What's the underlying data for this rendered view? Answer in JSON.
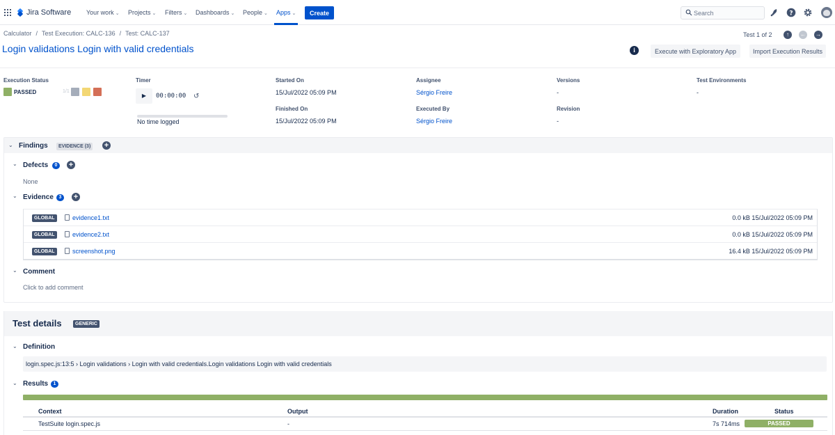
{
  "app": {
    "name": "Jira Software"
  },
  "nav": {
    "items": [
      {
        "label": "Your work"
      },
      {
        "label": "Projects"
      },
      {
        "label": "Filters"
      },
      {
        "label": "Dashboards"
      },
      {
        "label": "People"
      },
      {
        "label": "Apps"
      }
    ],
    "create_label": "Create",
    "search_placeholder": "Search"
  },
  "breadcrumb": [
    "Calculator",
    "Test Execution: CALC-136",
    "Test: CALC-137"
  ],
  "header": {
    "title": "Login validations Login with valid credentials",
    "pager": "Test 1 of 2",
    "execute_button": "Execute with Exploratory App",
    "import_button": "Import Execution Results"
  },
  "execution": {
    "status_label": "Execution Status",
    "status": "PASSED",
    "status_color": "#8fb066",
    "status_fraction": "1/1",
    "other_status_colors": [
      "#a5adba",
      "#f3d774",
      "#d46f57"
    ],
    "timer_label": "Timer",
    "timer_value": "00:00:00",
    "timer_note": "No time logged",
    "started_label": "Started On",
    "started_value": "15/Jul/2022 05:09 PM",
    "finished_label": "Finished On",
    "finished_value": "15/Jul/2022 05:09 PM",
    "assignee_label": "Assignee",
    "assignee_value": "Sérgio Freire",
    "executed_by_label": "Executed By",
    "executed_by_value": "Sérgio Freire",
    "versions_label": "Versions",
    "versions_value": "-",
    "revision_label": "Revision",
    "revision_value": "-",
    "environments_label": "Test Environments",
    "environments_value": "-"
  },
  "findings": {
    "title": "Findings",
    "badge": "EVIDENCE (3)",
    "defects_title": "Defects",
    "defects_count": "0",
    "defects_empty": "None",
    "evidence_title": "Evidence",
    "evidence_count": "3",
    "evidence": [
      {
        "scope": "GLOBAL",
        "name": "evidence1.txt",
        "meta": "0.0 kB 15/Jul/2022 05:09 PM"
      },
      {
        "scope": "GLOBAL",
        "name": "evidence2.txt",
        "meta": "0.0 kB 15/Jul/2022 05:09 PM"
      },
      {
        "scope": "GLOBAL",
        "name": "screenshot.png",
        "meta": "16.4 kB 15/Jul/2022 05:09 PM"
      }
    ],
    "comment_title": "Comment",
    "comment_placeholder": "Click to add comment"
  },
  "test_details": {
    "title": "Test details",
    "badge": "GENERIC",
    "definition_title": "Definition",
    "definition": "login.spec.js:13:5 › Login validations › Login with valid credentials.Login validations Login with valid credentials",
    "results_title": "Results",
    "results_count": "1",
    "columns": [
      "Context",
      "Output",
      "Duration",
      "Status"
    ],
    "rows": [
      {
        "context": "TestSuite login.spec.js",
        "output": "-",
        "duration": "7s 714ms",
        "status": "PASSED"
      }
    ]
  }
}
